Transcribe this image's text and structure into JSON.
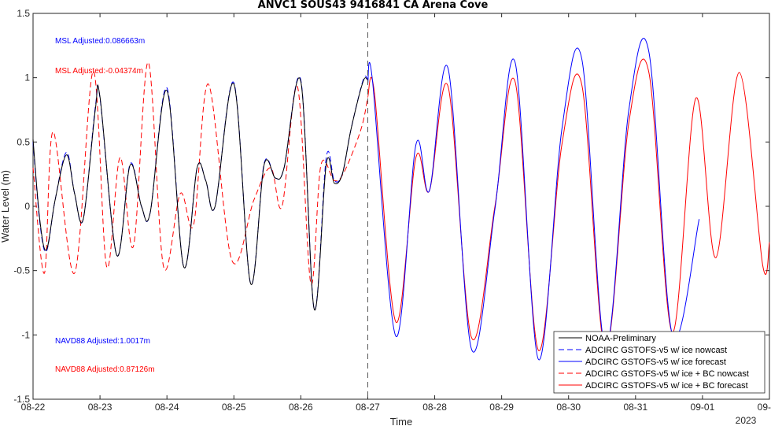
{
  "chart_data": {
    "type": "line",
    "title": "ANVC1 SOUS43 9416841 CA Arena Cove",
    "xlabel": "Time",
    "ylabel": "Water Level (m)",
    "xlim": [
      0,
      11
    ],
    "ylim": [
      -1.5,
      1.5
    ],
    "x_ticks": [
      {
        "x": 0,
        "label": "08-22"
      },
      {
        "x": 1,
        "label": "08-23"
      },
      {
        "x": 2,
        "label": "08-24"
      },
      {
        "x": 3,
        "label": "08-25"
      },
      {
        "x": 4,
        "label": "08-26"
      },
      {
        "x": 5,
        "label": "08-27"
      },
      {
        "x": 6,
        "label": "08-28"
      },
      {
        "x": 7,
        "label": "08-29"
      },
      {
        "x": 8,
        "label": "08-30"
      },
      {
        "x": 9,
        "label": "08-31"
      },
      {
        "x": 10,
        "label": "09-01"
      },
      {
        "x": 11,
        "label": "09-02"
      }
    ],
    "x_year_label": "2023",
    "y_ticks": [
      {
        "y": -1.5,
        "label": "-1.5"
      },
      {
        "y": -1,
        "label": "-1"
      },
      {
        "y": -0.5,
        "label": "-0.5"
      },
      {
        "y": 0,
        "label": "0"
      },
      {
        "y": 0.5,
        "label": "0.5"
      },
      {
        "y": 1,
        "label": "1"
      },
      {
        "y": 1.5,
        "label": "1.5"
      }
    ],
    "nowcast_forecast_divider_x": 5,
    "annotations": [
      {
        "text": "MSL Adjusted:0.086663m",
        "color": "#0000ff"
      },
      {
        "text": "MSL Adjusted:-0.04374m",
        "color": "#ff0000"
      },
      {
        "text": "NAVD88 Adjusted:1.0017m",
        "color": "#0000ff"
      },
      {
        "text": "NAVD88 Adjusted:0.87126m",
        "color": "#ff0000"
      }
    ],
    "legend_position": "bottom-right",
    "series": [
      {
        "name": "NOAA-Preliminary",
        "color": "#000000",
        "dash": "solid",
        "x": [
          0,
          0.1,
          0.2,
          0.33,
          0.5,
          0.62,
          0.75,
          0.93,
          1.0,
          1.25,
          1.45,
          1.62,
          1.75,
          2.0,
          2.25,
          2.45,
          2.58,
          2.72,
          3.0,
          3.25,
          3.45,
          3.62,
          3.75,
          4.0,
          4.2,
          4.38,
          4.5,
          4.62,
          4.75,
          4.93,
          5.0
        ],
        "y": [
          0.52,
          -0.1,
          -0.34,
          0.05,
          0.4,
          0.1,
          -0.1,
          0.75,
          0.85,
          -0.38,
          0.32,
          0.0,
          -0.05,
          0.9,
          -0.47,
          0.3,
          0.2,
          0.0,
          0.95,
          -0.6,
          0.32,
          0.22,
          0.3,
          0.97,
          -0.8,
          0.33,
          0.18,
          0.25,
          0.6,
          0.97,
          0.98
        ]
      },
      {
        "name": "ADCIRC GSTOFS-v5 w/ ice nowcast",
        "color": "#0000ff",
        "dash": "dashed",
        "x": [
          0,
          0.1,
          0.2,
          0.33,
          0.5,
          0.62,
          0.75,
          0.93,
          1.0,
          1.25,
          1.45,
          1.62,
          1.75,
          2.0,
          2.25,
          2.45,
          2.58,
          2.72,
          3.0,
          3.25,
          3.45,
          3.62,
          3.75,
          4.0,
          4.2,
          4.38,
          4.5,
          4.62,
          4.75,
          4.93,
          5.0
        ],
        "y": [
          0.5,
          -0.12,
          -0.35,
          0.05,
          0.42,
          0.1,
          -0.1,
          0.77,
          0.84,
          -0.38,
          0.33,
          0.0,
          -0.05,
          0.92,
          -0.47,
          0.3,
          0.2,
          0.0,
          0.96,
          -0.6,
          0.33,
          0.22,
          0.3,
          0.98,
          -0.8,
          0.38,
          0.2,
          0.25,
          0.6,
          0.98,
          0.99
        ]
      },
      {
        "name": "ADCIRC GSTOFS-v5 w/ ice forecast",
        "color": "#0000ff",
        "dash": "solid",
        "x": [
          5.0,
          5.07,
          5.42,
          5.72,
          5.92,
          6.2,
          6.55,
          6.9,
          7.2,
          7.55,
          7.9,
          8.2,
          8.55,
          8.9,
          9.2,
          9.55,
          9.95
        ],
        "y": [
          0.95,
          0.98,
          -1.01,
          0.48,
          0.12,
          1.07,
          -1.11,
          -0.02,
          1.12,
          -1.19,
          0.6,
          1.14,
          -1.1,
          0.75,
          1.2,
          -1.0,
          -0.1
        ]
      },
      {
        "name": "ADCIRC GSTOFS-v5 w/ ice + BC nowcast",
        "color": "#ff0000",
        "dash": "dashed",
        "x": [
          0,
          0.17,
          0.3,
          0.62,
          0.9,
          1.1,
          1.3,
          1.5,
          1.72,
          1.95,
          2.2,
          2.4,
          2.62,
          2.97,
          3.3,
          3.55,
          3.72,
          3.95,
          4.15,
          4.3,
          4.5,
          4.65,
          4.9,
          5.0
        ],
        "y": [
          0.3,
          -0.52,
          0.58,
          -0.52,
          1.05,
          -0.47,
          0.38,
          -0.31,
          1.12,
          -0.47,
          0.1,
          -0.14,
          0.95,
          -0.42,
          0.05,
          0.3,
          0.0,
          0.93,
          -0.6,
          0.32,
          0.2,
          0.27,
          0.6,
          0.85
        ]
      },
      {
        "name": "ADCIRC GSTOFS-v5 w/ ice + BC forecast",
        "color": "#ff0000",
        "dash": "solid",
        "x": [
          5.0,
          5.1,
          5.42,
          5.72,
          5.92,
          6.2,
          6.55,
          6.9,
          7.2,
          7.55,
          7.9,
          8.2,
          8.55,
          8.9,
          9.2,
          9.55,
          9.9,
          10.2,
          10.55,
          10.9,
          11.0
        ],
        "y": [
          0.85,
          0.88,
          -0.9,
          0.38,
          0.12,
          0.93,
          -1.02,
          0.0,
          0.97,
          -1.12,
          0.48,
          0.94,
          -1.12,
          0.65,
          1.04,
          -0.98,
          0.84,
          -0.4,
          1.04,
          -0.46,
          -0.28
        ]
      }
    ]
  }
}
